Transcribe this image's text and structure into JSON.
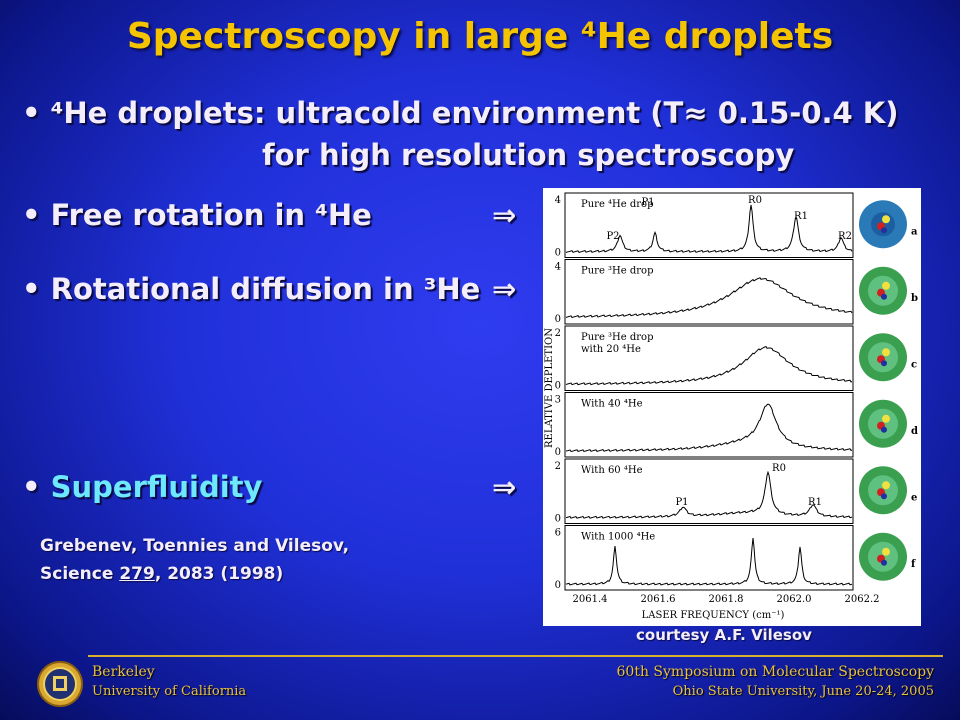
{
  "title": "Spectroscopy in large ⁴He droplets",
  "bullets": [
    {
      "lines": [
        "⁴He droplets: ultracold environment (T≈ 0.15-0.4 K)",
        "for high resolution spectroscopy"
      ]
    },
    {
      "text": "Free rotation in ⁴He",
      "arrow": "⇒"
    },
    {
      "text": "Rotational diffusion in ³He",
      "arrow": "⇒"
    },
    {
      "text": "Superfluidity",
      "arrow": "⇒"
    }
  ],
  "reference": {
    "line1": "Grebenev, Toennies and Vilesov,",
    "line2": [
      "Science ",
      "279",
      ", 2083 (1998)"
    ]
  },
  "figure": {
    "y_label": "RELATIVE DEPLETION",
    "x_label": "LASER FREQUENCY (cm⁻¹)",
    "x_ticks": [
      "2061.4",
      "2061.6",
      "2061.8",
      "2062.0",
      "2062.2"
    ],
    "panels": [
      {
        "label": [
          "Pure ⁴He drop"
        ],
        "y_top": "4",
        "y_bottom": "0",
        "letter": "a",
        "peaks": [
          "P2",
          "P1",
          "R0",
          "R1",
          "R2"
        ]
      },
      {
        "label": [
          "Pure ³He drop"
        ],
        "y_top": "4",
        "y_bottom": "0",
        "letter": "b",
        "peaks": []
      },
      {
        "label": [
          "Pure ³He drop",
          "with 20 ⁴He"
        ],
        "y_top": "2",
        "y_bottom": "0",
        "letter": "c",
        "peaks": []
      },
      {
        "label": [
          "With 40 ⁴He"
        ],
        "y_top": "3",
        "y_bottom": "0",
        "letter": "d",
        "peaks": []
      },
      {
        "label": [
          "With 60 ⁴He"
        ],
        "y_top": "2",
        "y_bottom": "0",
        "letter": "e",
        "peaks": [
          "P1",
          "R0",
          "R1"
        ]
      },
      {
        "label": [
          "With 1000 ⁴He"
        ],
        "y_top": "6",
        "y_bottom": "0",
        "letter": "f",
        "peaks": []
      }
    ]
  },
  "courtesy": "courtesy  A.F. Vilesov",
  "footer": {
    "left": [
      "Berkeley",
      "University of California"
    ],
    "right": [
      "60th Symposium on Molecular Spectroscopy",
      "Ohio State University, June 20-24, 2005"
    ]
  }
}
